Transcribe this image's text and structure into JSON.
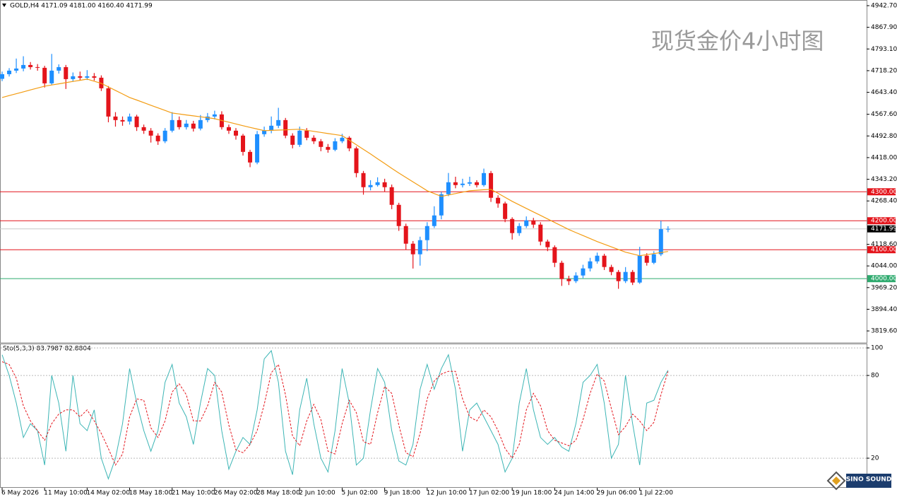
{
  "chart_data": [
    {
      "type": "candlestick",
      "title": "GOLD,H4 4171.09 4181.00 4160.40 4171.99",
      "watermark": "现货金价4小时图",
      "logo_text": "SINO SOUND",
      "bull_color": "#1e8fff",
      "bear_color": "#e4141b",
      "ma_color": "#f39c12",
      "categories": [
        "6 May 2026",
        null,
        null,
        null,
        null,
        null,
        "11 May 10:00",
        null,
        null,
        null,
        null,
        null,
        "14 May 02:00",
        null,
        null,
        null,
        null,
        null,
        "18 May 18:00",
        null,
        null,
        null,
        null,
        null,
        "21 May 10:00",
        null,
        null,
        null,
        null,
        null,
        "26 May 02:00",
        null,
        null,
        null,
        null,
        null,
        "28 May 18:00",
        null,
        null,
        null,
        null,
        null,
        "2 Jun 10:00",
        null,
        null,
        null,
        null,
        null,
        "5 Jun 02:00",
        null,
        null,
        null,
        null,
        null,
        "9 Jun 18:00",
        null,
        null,
        null,
        null,
        null,
        "12 Jun 10:00",
        null,
        null,
        null,
        null,
        null,
        "17 Jun 02:00",
        null,
        null,
        null,
        null,
        null,
        "19 Jun 18:00",
        null,
        null,
        null,
        null,
        null,
        "24 Jun 14:00",
        null,
        null,
        null,
        null,
        null,
        "29 Jun 06:00",
        null,
        null,
        null,
        null,
        null,
        "1 Jul 22:00",
        null,
        null,
        null,
        null
      ],
      "open": [
        4690.0,
        4706.1,
        4718.3,
        4725.6,
        4737.8,
        4730.5,
        4728.1,
        4674.4,
        4718.3,
        4730.5,
        4689.0,
        4698.8,
        4693.9,
        4698.8,
        4693.9,
        4657.3,
        4559.8,
        4547.6,
        4542.7,
        4559.8,
        4523.2,
        4511.0,
        4493.9,
        4474.4,
        4511.0,
        4547.6,
        4523.2,
        4535.4,
        4518.3,
        4547.6,
        4559.8,
        4567.1,
        4523.2,
        4511.0,
        4493.9,
        4437.8,
        4401.2,
        4498.8,
        4511.0,
        4528.1,
        4547.6,
        4493.9,
        4462.2,
        4511.0,
        4486.6,
        4474.4,
        4454.9,
        4445.1,
        4474.4,
        4486.6,
        4450.0,
        4364.6,
        4315.9,
        4323.2,
        4332.9,
        4315.9,
        4254.9,
        4181.7,
        4120.8,
        4084.2,
        4133.0,
        4181.7,
        4218.3,
        4291.5,
        4332.9,
        4323.2,
        4328.1,
        4332.9,
        4323.2,
        4364.6,
        4279.3,
        4259.7,
        4206.1,
        4157.4,
        4181.7,
        4201.2,
        4186.6,
        4128.1,
        4108.6,
        4054.9,
        3998.8,
        3991.5,
        4011.0,
        4035.4,
        4059.8,
        4079.3,
        4040.3,
        4023.2,
        3991.5,
        4023.2,
        3986.6,
        4079.3,
        4054.9,
        4084.2,
        4171.09
      ],
      "high": [
        4715,
        4727,
        4760,
        4768,
        4748,
        4741,
        4735,
        4776,
        4740,
        4738,
        4712,
        4715,
        4720,
        4710,
        4702,
        4665,
        4575,
        4560,
        4570,
        4566,
        4532,
        4520,
        4502,
        4520,
        4575,
        4560,
        4548,
        4545,
        4565,
        4572,
        4580,
        4578,
        4532,
        4520,
        4500,
        4445,
        4510,
        4525,
        4560,
        4590,
        4555,
        4502,
        4525,
        4520,
        4495,
        4482,
        4465,
        4485,
        4500,
        4492,
        4456,
        4372,
        4340,
        4350,
        4345,
        4325,
        4262,
        4190,
        4130,
        4145,
        4195,
        4250,
        4300,
        4365,
        4352,
        4345,
        4352,
        4340,
        4380,
        4372,
        4288,
        4266,
        4212,
        4192,
        4215,
        4210,
        4195,
        4135,
        4115,
        4062,
        4010,
        4022,
        4048,
        4072,
        4090,
        4086,
        4048,
        4030,
        4040,
        4030,
        4110,
        4088,
        4095,
        4200,
        4181.0
      ],
      "low": [
        4682,
        4698,
        4710,
        4716,
        4722,
        4718,
        4660,
        4668,
        4708,
        4655,
        4680,
        4685,
        4686,
        4684,
        4648,
        4540,
        4525,
        4528,
        4532,
        4510,
        4500,
        4470,
        4462,
        4468,
        4505,
        4515,
        4515,
        4508,
        4512,
        4540,
        4550,
        4515,
        4500,
        4480,
        4425,
        4385,
        4395,
        4490,
        4502,
        4520,
        4485,
        4450,
        4455,
        4478,
        4465,
        4440,
        4435,
        4440,
        4468,
        4440,
        4350,
        4290,
        4305,
        4318,
        4300,
        4240,
        4165,
        4100,
        4035,
        4045,
        4095,
        4175,
        4205,
        4285,
        4312,
        4315,
        4320,
        4315,
        4318,
        4265,
        4245,
        4195,
        4135,
        4148,
        4175,
        4175,
        4115,
        4095,
        4040,
        3975,
        3978,
        3985,
        4002,
        4025,
        4052,
        4030,
        4012,
        3965,
        3985,
        3978,
        3982,
        4045,
        4050,
        4078,
        4160.4
      ],
      "close": [
        4706.1,
        4718.3,
        4725.6,
        4737.8,
        4730.5,
        4728.1,
        4674.4,
        4718.3,
        4730.5,
        4689.0,
        4698.8,
        4693.9,
        4698.8,
        4693.9,
        4657.3,
        4559.8,
        4547.6,
        4542.7,
        4559.8,
        4523.2,
        4511.0,
        4493.9,
        4474.4,
        4511.0,
        4547.6,
        4523.2,
        4535.4,
        4518.3,
        4547.6,
        4559.8,
        4567.1,
        4523.2,
        4511.0,
        4493.9,
        4437.8,
        4401.2,
        4498.8,
        4511.0,
        4528.1,
        4547.6,
        4493.9,
        4462.2,
        4511.0,
        4486.6,
        4474.4,
        4454.9,
        4445.1,
        4474.4,
        4486.6,
        4450.0,
        4364.6,
        4315.9,
        4323.2,
        4332.9,
        4315.9,
        4254.9,
        4181.7,
        4120.8,
        4084.2,
        4133.0,
        4181.7,
        4218.3,
        4291.5,
        4332.9,
        4323.2,
        4328.1,
        4332.9,
        4323.2,
        4364.6,
        4279.3,
        4259.7,
        4206.1,
        4157.4,
        4181.7,
        4201.2,
        4186.6,
        4128.1,
        4108.6,
        4054.9,
        3998.8,
        3991.5,
        4011.0,
        4035.4,
        4059.8,
        4079.3,
        4040.3,
        4023.2,
        3991.5,
        4023.2,
        3986.6,
        4079.3,
        4054.9,
        4084.2,
        4171.09,
        4171.99
      ],
      "ma_values": [
        4625.6,
        4632.1,
        4638.6,
        4645.1,
        4651.6,
        4658.1,
        4664.6,
        4668.7,
        4672.7,
        4676.8,
        4680.9,
        4684.9,
        4689.0,
        4681.7,
        4674.4,
        4662.2,
        4650.0,
        4637.8,
        4625.6,
        4616.7,
        4607.7,
        4598.8,
        4589.8,
        4580.9,
        4571.9,
        4568.7,
        4565.4,
        4562.2,
        4558.9,
        4555.7,
        4552.4,
        4546.3,
        4540.3,
        4534.2,
        4528.1,
        4522.4,
        4516.7,
        4511.0,
        4512.0,
        4513.0,
        4513.9,
        4514.9,
        4515.9,
        4512.2,
        4508.6,
        4504.9,
        4501.2,
        4497.6,
        4493.9,
        4478.1,
        4462.2,
        4446.4,
        4430.5,
        4414.0,
        4397.6,
        4381.1,
        4364.6,
        4349.4,
        4334.2,
        4318.9,
        4303.7,
        4293.9,
        4284.1,
        4289.0,
        4293.9,
        4298.8,
        4303.7,
        4305.3,
        4307.0,
        4308.6,
        4294.8,
        4280.9,
        4267.1,
        4254.9,
        4242.7,
        4230.5,
        4218.3,
        4206.1,
        4193.9,
        4181.7,
        4169.5,
        4159.2,
        4148.8,
        4138.5,
        4128.1,
        4119.0,
        4109.8,
        4100.7,
        4091.5,
        4085.4,
        4079.3,
        4083.0,
        4086.6,
        4090.3,
        4093.9
      ],
      "ylim": [
        3778.3,
        4962.2
      ],
      "yticks": [
        {
          "value": 4942.7,
          "label": "4942.70"
        },
        {
          "value": 4867.9,
          "label": "4867.90"
        },
        {
          "value": 4793.1,
          "label": "4793.10"
        },
        {
          "value": 4718.2,
          "label": "4718.20"
        },
        {
          "value": 4643.4,
          "label": "4643.40"
        },
        {
          "value": 4567.6,
          "label": "4567.60"
        },
        {
          "value": 4492.8,
          "label": "4492.80"
        },
        {
          "value": 4418.0,
          "label": "4418.00"
        },
        {
          "value": 4343.2,
          "label": "4343.20"
        },
        {
          "value": 4268.4,
          "label": "4268.40"
        },
        {
          "value": 4118.6,
          "label": "4118.60"
        },
        {
          "value": 4044.0,
          "label": "4044.00"
        },
        {
          "value": 3969.2,
          "label": "3969.20"
        },
        {
          "value": 3894.4,
          "label": "3894.40"
        },
        {
          "value": 3819.6,
          "label": "3819.60"
        }
      ],
      "price_lines": [
        {
          "value": 4300,
          "label": "4300.00",
          "color": "#e4141b"
        },
        {
          "value": 4200,
          "label": "4200.00",
          "color": "#e4141b"
        },
        {
          "value": 4171.99,
          "label": "4171.99",
          "color": "#000000"
        },
        {
          "value": 4100,
          "label": "4100.00",
          "color": "#e4141b"
        },
        {
          "value": 4000,
          "label": "4000.00",
          "color": "#2eaa6e"
        }
      ]
    },
    {
      "type": "line",
      "title": "Sto(5,3,3) 83.7987 82.8804",
      "series": [
        {
          "color": "#3cb5b5",
          "dash": false,
          "values": [
            95,
            80,
            60,
            35,
            45,
            40,
            15,
            80,
            60,
            25,
            80,
            45,
            40,
            55,
            20,
            5,
            20,
            45,
            85,
            60,
            40,
            25,
            40,
            75,
            88,
            60,
            50,
            30,
            60,
            85,
            80,
            40,
            12,
            25,
            35,
            30,
            55,
            92,
            98,
            75,
            25,
            8,
            55,
            78,
            45,
            20,
            10,
            40,
            85,
            60,
            15,
            20,
            55,
            85,
            75,
            40,
            18,
            15,
            30,
            70,
            88,
            70,
            85,
            95,
            70,
            25,
            55,
            60,
            50,
            40,
            30,
            10,
            20,
            60,
            85,
            55,
            35,
            30,
            35,
            28,
            25,
            45,
            75,
            80,
            88,
            60,
            20,
            30,
            80,
            45,
            15,
            60,
            62,
            75,
            83.8
          ]
        },
        {
          "color": "#e4141b",
          "dash": true,
          "values": [
            90,
            88,
            78,
            58,
            47,
            40,
            33,
            45,
            52,
            55,
            55,
            50,
            55,
            47,
            38,
            27,
            15,
            23,
            50,
            63,
            62,
            42,
            35,
            47,
            68,
            74,
            66,
            47,
            47,
            58,
            75,
            68,
            44,
            26,
            24,
            30,
            40,
            59,
            82,
            88,
            66,
            36,
            29,
            47,
            59,
            48,
            25,
            23,
            45,
            62,
            53,
            32,
            30,
            53,
            72,
            67,
            44,
            24,
            21,
            38,
            63,
            76,
            81,
            83,
            83,
            63,
            50,
            47,
            55,
            50,
            40,
            27,
            20,
            30,
            55,
            67,
            58,
            40,
            33,
            31,
            29,
            33,
            48,
            67,
            81,
            76,
            56,
            37,
            43,
            52,
            47,
            40,
            46,
            66,
            82.9
          ]
        }
      ],
      "ylim": [
        -1.5,
        102.6
      ],
      "yticks": [
        100,
        80,
        20
      ]
    }
  ]
}
